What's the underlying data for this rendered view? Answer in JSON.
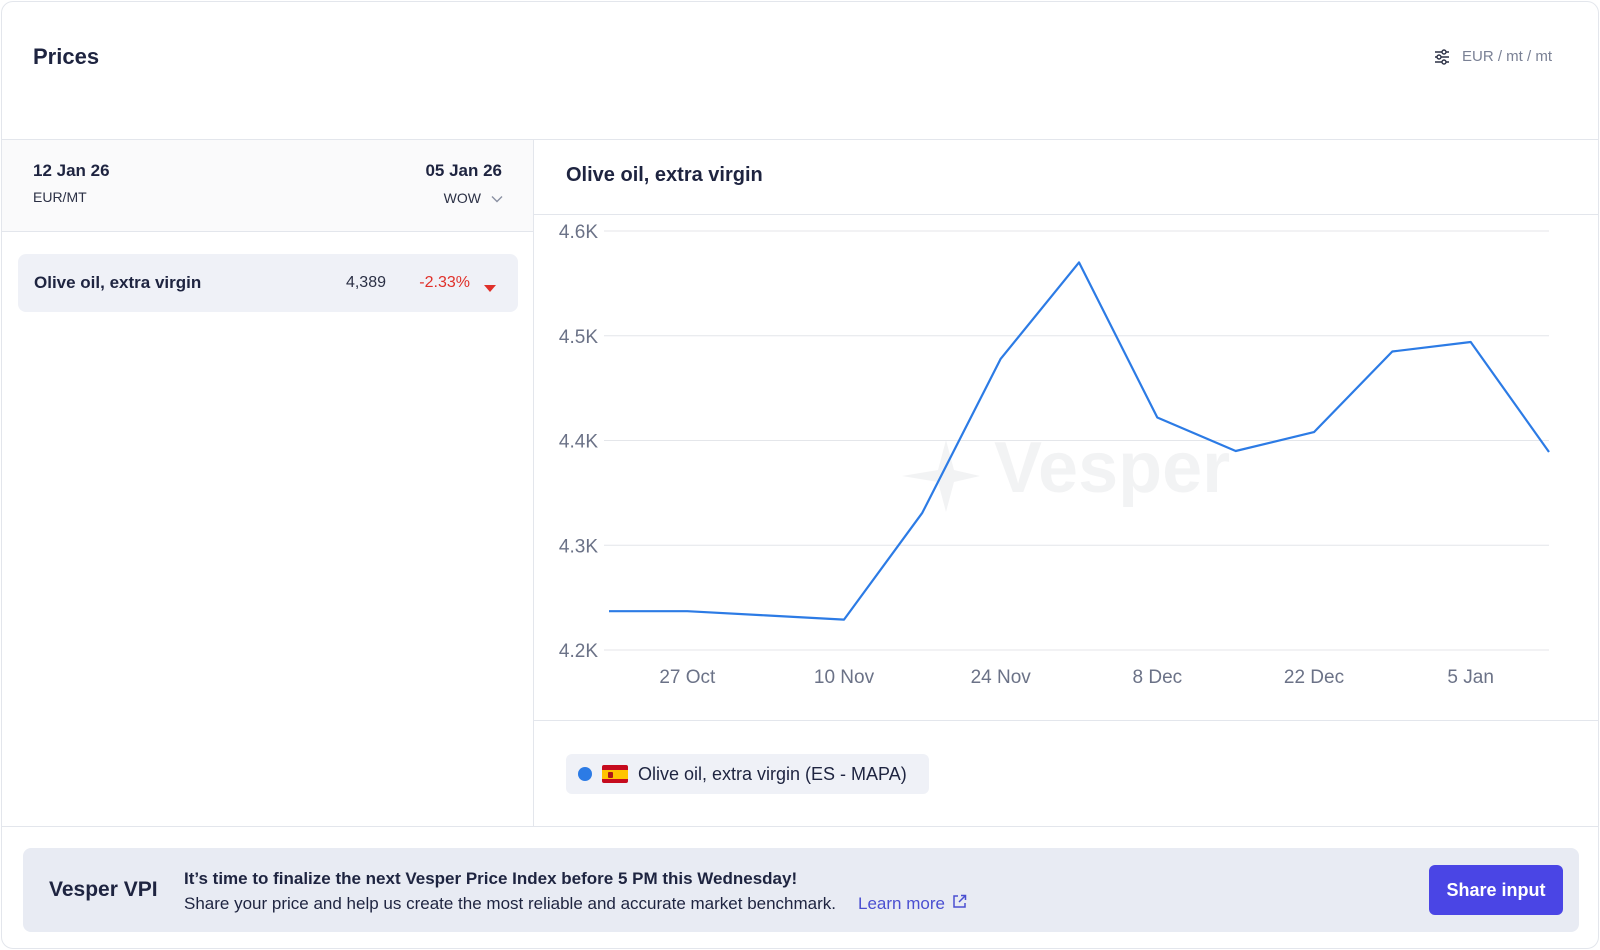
{
  "header": {
    "title": "Prices",
    "units": "EUR / mt / mt",
    "settings_icon": "sliders-icon"
  },
  "table": {
    "current_date": "12 Jan 26",
    "unit": "EUR/MT",
    "compare_date": "05 Jan 26",
    "period": "WOW",
    "rows": [
      {
        "name": "Olive oil, extra virgin",
        "price": "4,389",
        "change": "-2.33%",
        "direction": "down"
      }
    ]
  },
  "chart": {
    "title": "Olive oil, extra virgin",
    "watermark": "Vesper",
    "legend": [
      {
        "label": "Olive oil, extra virgin (ES - MAPA)",
        "color": "#2c7be5",
        "flag": "spain-flag-icon"
      }
    ]
  },
  "chart_data": {
    "type": "line",
    "x": [
      "2025-10-20",
      "2025-10-27",
      "2025-11-03",
      "2025-11-10",
      "2025-11-17",
      "2025-11-24",
      "2025-12-01",
      "2025-12-08",
      "2025-12-15",
      "2025-12-22",
      "2025-12-29",
      "2026-01-05",
      "2026-01-12"
    ],
    "series": [
      {
        "name": "Olive oil, extra virgin (ES - MAPA)",
        "color": "#2c7be5",
        "values": [
          4237,
          4237,
          4233,
          4229,
          4331,
          4478,
          4570,
          4422,
          4390,
          4408,
          4485,
          4494,
          4389
        ]
      }
    ],
    "x_ticks": [
      {
        "date": "2025-10-27",
        "label": "27 Oct"
      },
      {
        "date": "2025-11-10",
        "label": "10 Nov"
      },
      {
        "date": "2025-11-24",
        "label": "24 Nov"
      },
      {
        "date": "2025-12-08",
        "label": "8 Dec"
      },
      {
        "date": "2025-12-22",
        "label": "22 Dec"
      },
      {
        "date": "2026-01-05",
        "label": "5 Jan"
      }
    ],
    "y_ticks": [
      {
        "value": 4200,
        "label": "4.2K"
      },
      {
        "value": 4300,
        "label": "4.3K"
      },
      {
        "value": 4400,
        "label": "4.4K"
      },
      {
        "value": 4500,
        "label": "4.5K"
      },
      {
        "value": 4600,
        "label": "4.6K"
      }
    ],
    "ylim": [
      4200,
      4600
    ],
    "grid": true
  },
  "banner": {
    "brand": "Vesper VPI",
    "headline": "It’s time to finalize the next Vesper Price Index before 5 PM this Wednesday!",
    "body": "Share your price and help us create the most reliable and accurate market benchmark.",
    "link_label": "Learn more",
    "button_label": "Share input"
  }
}
